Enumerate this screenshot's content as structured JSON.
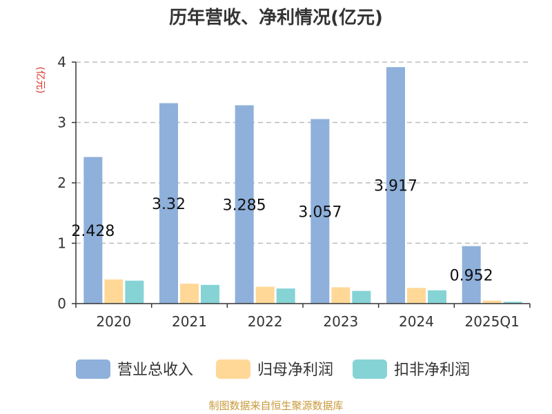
{
  "chart_data": {
    "type": "bar",
    "title": "历年营收、净利情况(亿元)",
    "ylabel": "(亿元)",
    "xlabel": "",
    "categories": [
      "2020",
      "2021",
      "2022",
      "2023",
      "2024",
      "2025Q1"
    ],
    "ylim": [
      0,
      4
    ],
    "yticks": [
      0,
      1,
      2,
      3,
      4
    ],
    "grid": true,
    "legend_position": "bottom",
    "series": [
      {
        "name": "营业总收入",
        "color": "#8eb0db",
        "values": [
          2.428,
          3.32,
          3.285,
          3.057,
          3.917,
          0.952
        ],
        "labels": [
          "2.428",
          "3.32",
          "3.285",
          "3.057",
          "3.917",
          "0.952"
        ]
      },
      {
        "name": "归母净利润",
        "color": "#ffd898",
        "values": [
          0.4,
          0.33,
          0.28,
          0.27,
          0.26,
          0.05
        ]
      },
      {
        "name": "扣非净利润",
        "color": "#86d3d6",
        "values": [
          0.38,
          0.31,
          0.25,
          0.21,
          0.22,
          0.03
        ]
      }
    ]
  },
  "source": "制图数据来自恒生聚源数据库"
}
